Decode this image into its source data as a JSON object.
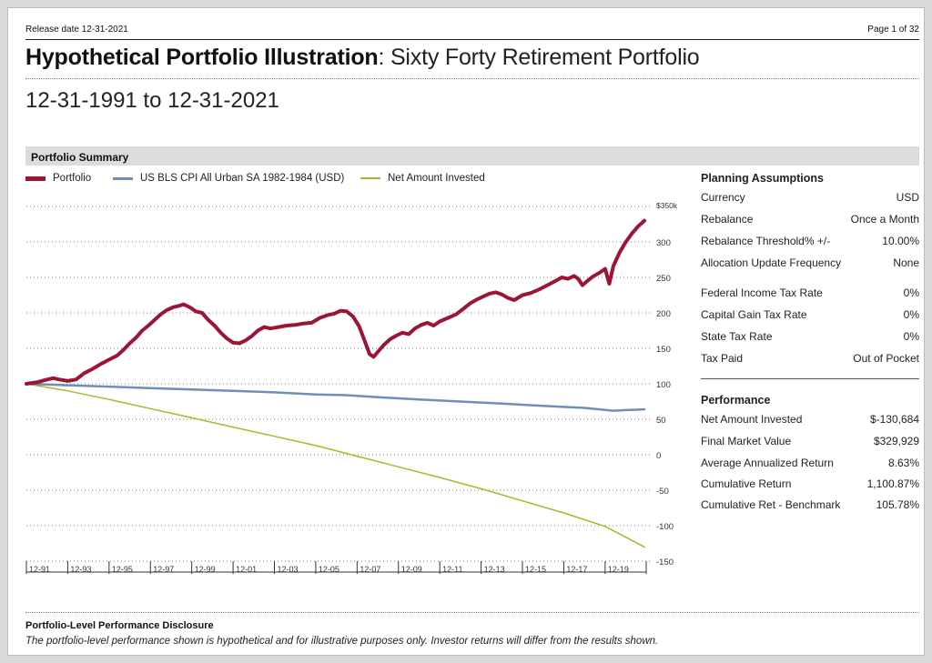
{
  "header": {
    "release_date": "Release date 12-31-2021",
    "page": "Page 1 of 32"
  },
  "title": {
    "bold": "Hypothetical Portfolio Illustration",
    "rest": ": Sixty Forty Retirement Portfolio"
  },
  "date_range": "12-31-1991 to 12-31-2021",
  "section_title": "Portfolio Summary",
  "chart_data": {
    "type": "line",
    "series": [
      {
        "name": "Portfolio",
        "color": "#9b1535",
        "points": [
          [
            1992.0,
            100
          ],
          [
            1992.5,
            102
          ],
          [
            1993.0,
            106
          ],
          [
            1993.3,
            108
          ],
          [
            1993.6,
            106
          ],
          [
            1994.0,
            104
          ],
          [
            1994.4,
            106
          ],
          [
            1994.8,
            115
          ],
          [
            1995.2,
            121
          ],
          [
            1995.6,
            128
          ],
          [
            1996.0,
            134
          ],
          [
            1996.4,
            140
          ],
          [
            1996.7,
            148
          ],
          [
            1997.0,
            157
          ],
          [
            1997.3,
            165
          ],
          [
            1997.6,
            175
          ],
          [
            1997.9,
            182
          ],
          [
            1998.2,
            190
          ],
          [
            1998.5,
            198
          ],
          [
            1998.8,
            204
          ],
          [
            1999.1,
            208
          ],
          [
            1999.4,
            210
          ],
          [
            1999.6,
            212
          ],
          [
            1999.9,
            208
          ],
          [
            2000.2,
            202
          ],
          [
            2000.5,
            200
          ],
          [
            2000.8,
            190
          ],
          [
            2001.1,
            182
          ],
          [
            2001.4,
            172
          ],
          [
            2001.7,
            164
          ],
          [
            2002.0,
            158
          ],
          [
            2002.3,
            157
          ],
          [
            2002.6,
            161
          ],
          [
            2002.9,
            167
          ],
          [
            2003.2,
            175
          ],
          [
            2003.5,
            180
          ],
          [
            2003.8,
            178
          ],
          [
            2004.2,
            180
          ],
          [
            2004.6,
            182
          ],
          [
            2005.0,
            183
          ],
          [
            2005.4,
            185
          ],
          [
            2005.8,
            186
          ],
          [
            2006.2,
            193
          ],
          [
            2006.6,
            197
          ],
          [
            2006.9,
            199
          ],
          [
            2007.2,
            203
          ],
          [
            2007.5,
            202
          ],
          [
            2007.8,
            195
          ],
          [
            2008.1,
            181
          ],
          [
            2008.4,
            158
          ],
          [
            2008.6,
            142
          ],
          [
            2008.8,
            138
          ],
          [
            2009.0,
            145
          ],
          [
            2009.3,
            155
          ],
          [
            2009.6,
            163
          ],
          [
            2009.9,
            168
          ],
          [
            2010.2,
            172
          ],
          [
            2010.5,
            170
          ],
          [
            2010.8,
            178
          ],
          [
            2011.1,
            183
          ],
          [
            2011.4,
            186
          ],
          [
            2011.7,
            182
          ],
          [
            2012.0,
            188
          ],
          [
            2012.4,
            193
          ],
          [
            2012.8,
            198
          ],
          [
            2013.2,
            207
          ],
          [
            2013.5,
            214
          ],
          [
            2013.8,
            219
          ],
          [
            2014.1,
            223
          ],
          [
            2014.4,
            227
          ],
          [
            2014.7,
            229
          ],
          [
            2015.0,
            226
          ],
          [
            2015.3,
            221
          ],
          [
            2015.6,
            218
          ],
          [
            2016.0,
            225
          ],
          [
            2016.4,
            228
          ],
          [
            2016.8,
            233
          ],
          [
            2017.2,
            239
          ],
          [
            2017.6,
            245
          ],
          [
            2017.9,
            250
          ],
          [
            2018.2,
            248
          ],
          [
            2018.5,
            252
          ],
          [
            2018.7,
            248
          ],
          [
            2018.9,
            239
          ],
          [
            2019.1,
            244
          ],
          [
            2019.4,
            251
          ],
          [
            2019.7,
            256
          ],
          [
            2020.0,
            262
          ],
          [
            2020.2,
            241
          ],
          [
            2020.4,
            266
          ],
          [
            2020.7,
            285
          ],
          [
            2021.0,
            300
          ],
          [
            2021.3,
            312
          ],
          [
            2021.6,
            322
          ],
          [
            2021.9,
            330
          ]
        ]
      },
      {
        "name": "US BLS CPI All Urban SA 1982-1984 (USD)",
        "color": "#6f8fb6",
        "points": [
          [
            1992.0,
            100
          ],
          [
            1994.0,
            98
          ],
          [
            1996.0,
            96
          ],
          [
            1998.0,
            94
          ],
          [
            2000.0,
            92
          ],
          [
            2002.0,
            90
          ],
          [
            2004.0,
            88
          ],
          [
            2006.0,
            85
          ],
          [
            2007.5,
            84
          ],
          [
            2008.5,
            82
          ],
          [
            2009.0,
            81
          ],
          [
            2011.0,
            78
          ],
          [
            2013.0,
            75
          ],
          [
            2015.0,
            72
          ],
          [
            2017.0,
            69
          ],
          [
            2019.0,
            66
          ],
          [
            2020.4,
            62
          ],
          [
            2021.0,
            63
          ],
          [
            2021.9,
            64
          ]
        ]
      },
      {
        "name": "Net Amount Invested",
        "color": "#a8b82c",
        "points": [
          [
            1992.0,
            100
          ],
          [
            1994.0,
            90
          ],
          [
            1996.0,
            78
          ],
          [
            1998.0,
            65
          ],
          [
            2000.0,
            52
          ],
          [
            2002.0,
            39
          ],
          [
            2004.0,
            26
          ],
          [
            2006.0,
            13
          ],
          [
            2008.0,
            -2
          ],
          [
            2010.0,
            -17
          ],
          [
            2012.0,
            -32
          ],
          [
            2014.0,
            -48
          ],
          [
            2016.0,
            -65
          ],
          [
            2018.0,
            -82
          ],
          [
            2020.0,
            -101
          ],
          [
            2021.9,
            -130
          ]
        ]
      }
    ],
    "y_axis": {
      "ticks": [
        "$350k",
        "300",
        "250",
        "200",
        "150",
        "100",
        "50",
        "0",
        "-50",
        "-100",
        "-150"
      ],
      "range": [
        -150,
        350
      ]
    },
    "x_axis": {
      "ticks": [
        "12-91",
        "12-93",
        "12-95",
        "12-97",
        "12-99",
        "12-01",
        "12-03",
        "12-05",
        "12-07",
        "12-09",
        "12-11",
        "12-13",
        "12-15",
        "12-17",
        "12-19"
      ],
      "range": [
        1992.0,
        2021.9
      ]
    },
    "grid": true
  },
  "planning": {
    "heading": "Planning Assumptions",
    "rows": [
      {
        "k": "Currency",
        "v": "USD"
      },
      {
        "k": "Rebalance",
        "v": "Once a Month"
      },
      {
        "k": "Rebalance Threshold% +/-",
        "v": "10.00%"
      },
      {
        "k": "Allocation Update Frequency",
        "v": "None"
      },
      {
        "k": "Federal Income Tax Rate",
        "v": "0%"
      },
      {
        "k": "Capital Gain Tax Rate",
        "v": "0%"
      },
      {
        "k": "State Tax Rate",
        "v": "0%"
      },
      {
        "k": "Tax Paid",
        "v": "Out of Pocket"
      }
    ]
  },
  "performance": {
    "heading": "Performance",
    "rows": [
      {
        "k": "Net Amount Invested",
        "v": "$-130,684"
      },
      {
        "k": "Final Market Value",
        "v": "$329,929"
      },
      {
        "k": "Average Annualized Return",
        "v": "8.63%"
      },
      {
        "k": "Cumulative Return",
        "v": "1,100.87%"
      },
      {
        "k": "Cumulative Ret - Benchmark",
        "v": "105.78%"
      }
    ]
  },
  "disclosure": {
    "heading": "Portfolio-Level Performance Disclosure",
    "text": "The portfolio-level performance shown is hypothetical and for illustrative purposes only. Investor returns will differ from the results shown."
  }
}
